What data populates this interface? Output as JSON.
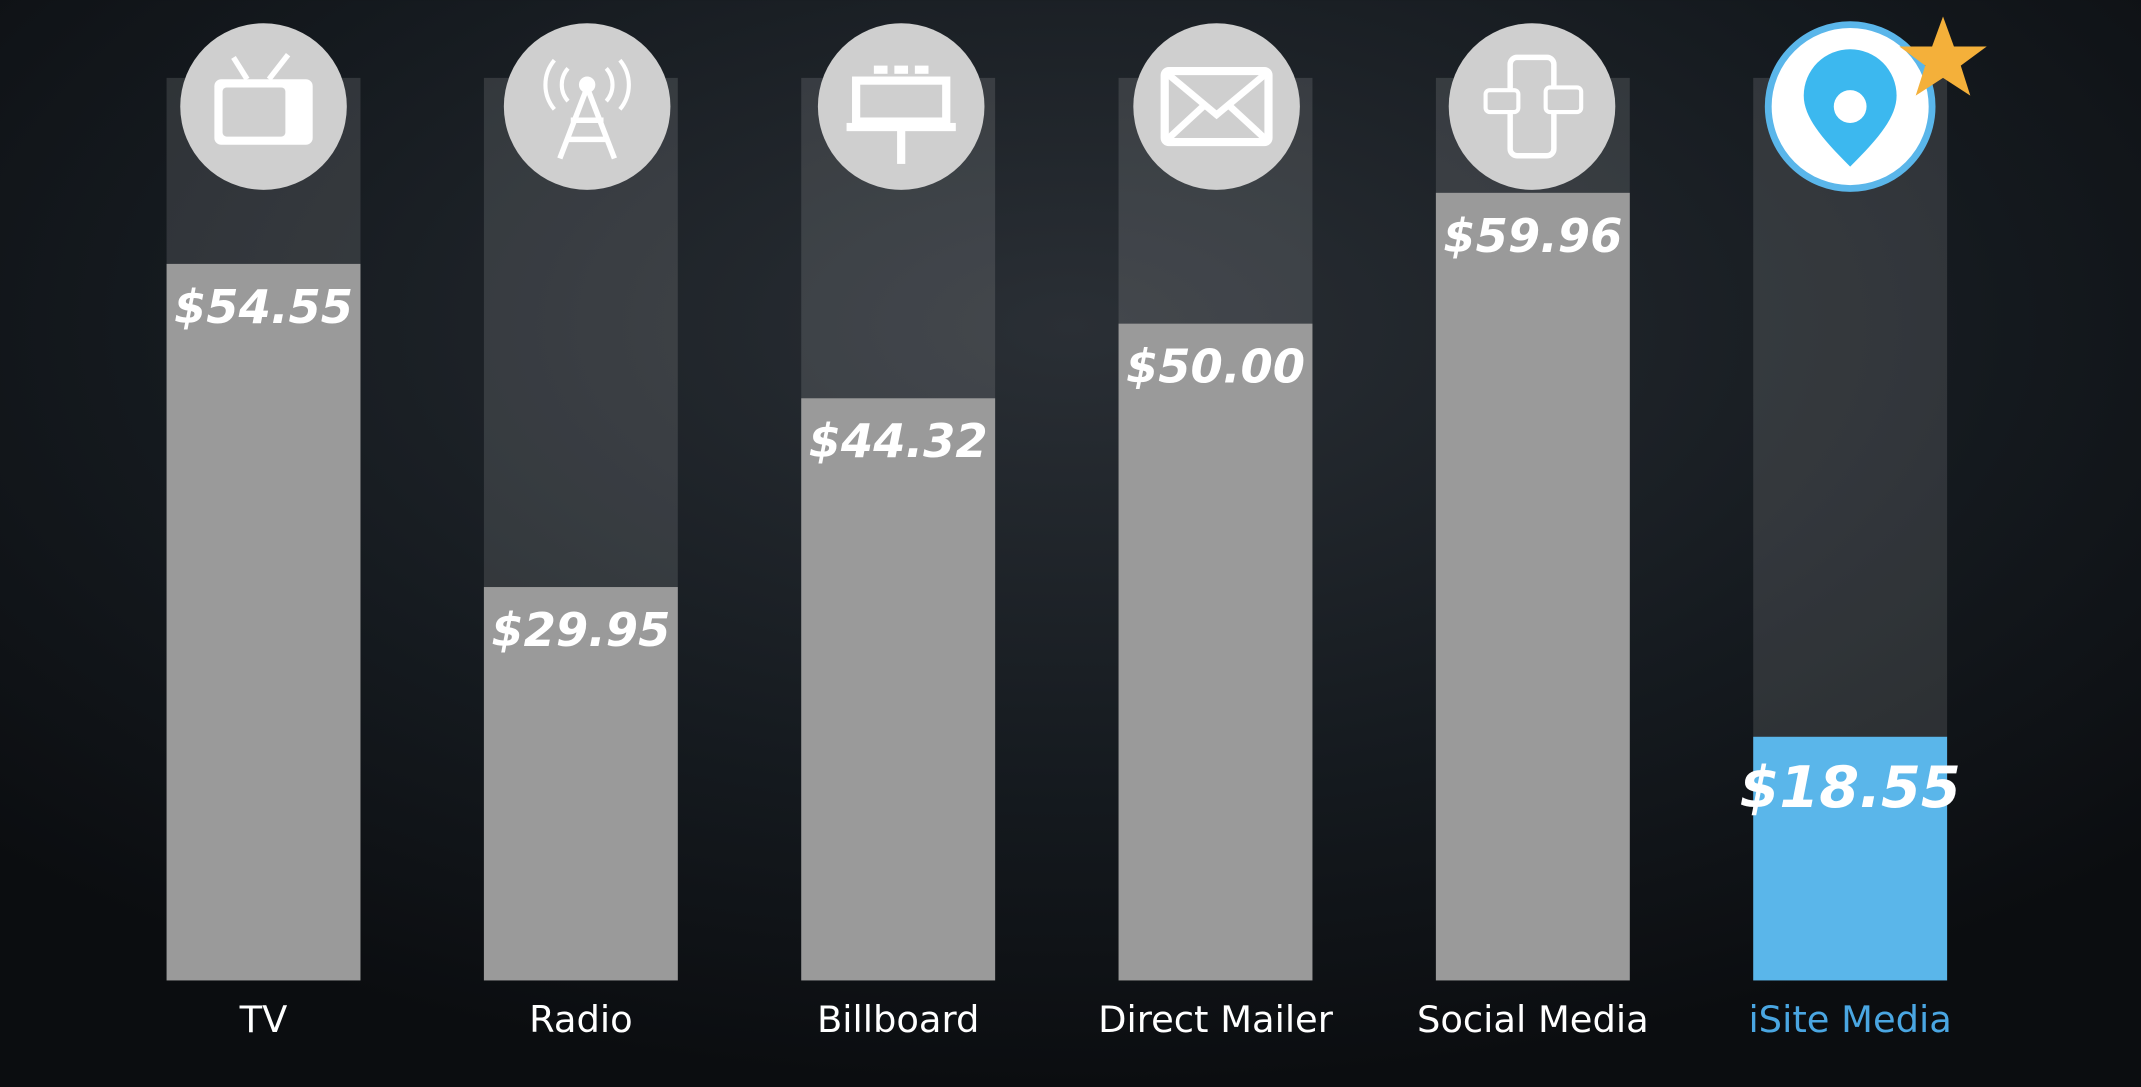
{
  "chart_data": {
    "type": "bar",
    "categories": [
      "TV",
      "Radio",
      "Billboard",
      "Direct Mailer",
      "Social Media",
      "iSite Media"
    ],
    "values": [
      54.55,
      29.95,
      44.32,
      50.0,
      59.96,
      18.55
    ],
    "value_labels": [
      "$54.55",
      "$29.95",
      "$44.32",
      "$50.00",
      "$59.96",
      "$18.55"
    ],
    "colors": [
      "#9a9a9a",
      "#9a9a9a",
      "#9a9a9a",
      "#9a9a9a",
      "#9a9a9a",
      "#5ab6ea"
    ],
    "label_colors": [
      "#ffffff",
      "#ffffff",
      "#ffffff",
      "#ffffff",
      "#ffffff",
      "#4aa6e2"
    ]
  }
}
